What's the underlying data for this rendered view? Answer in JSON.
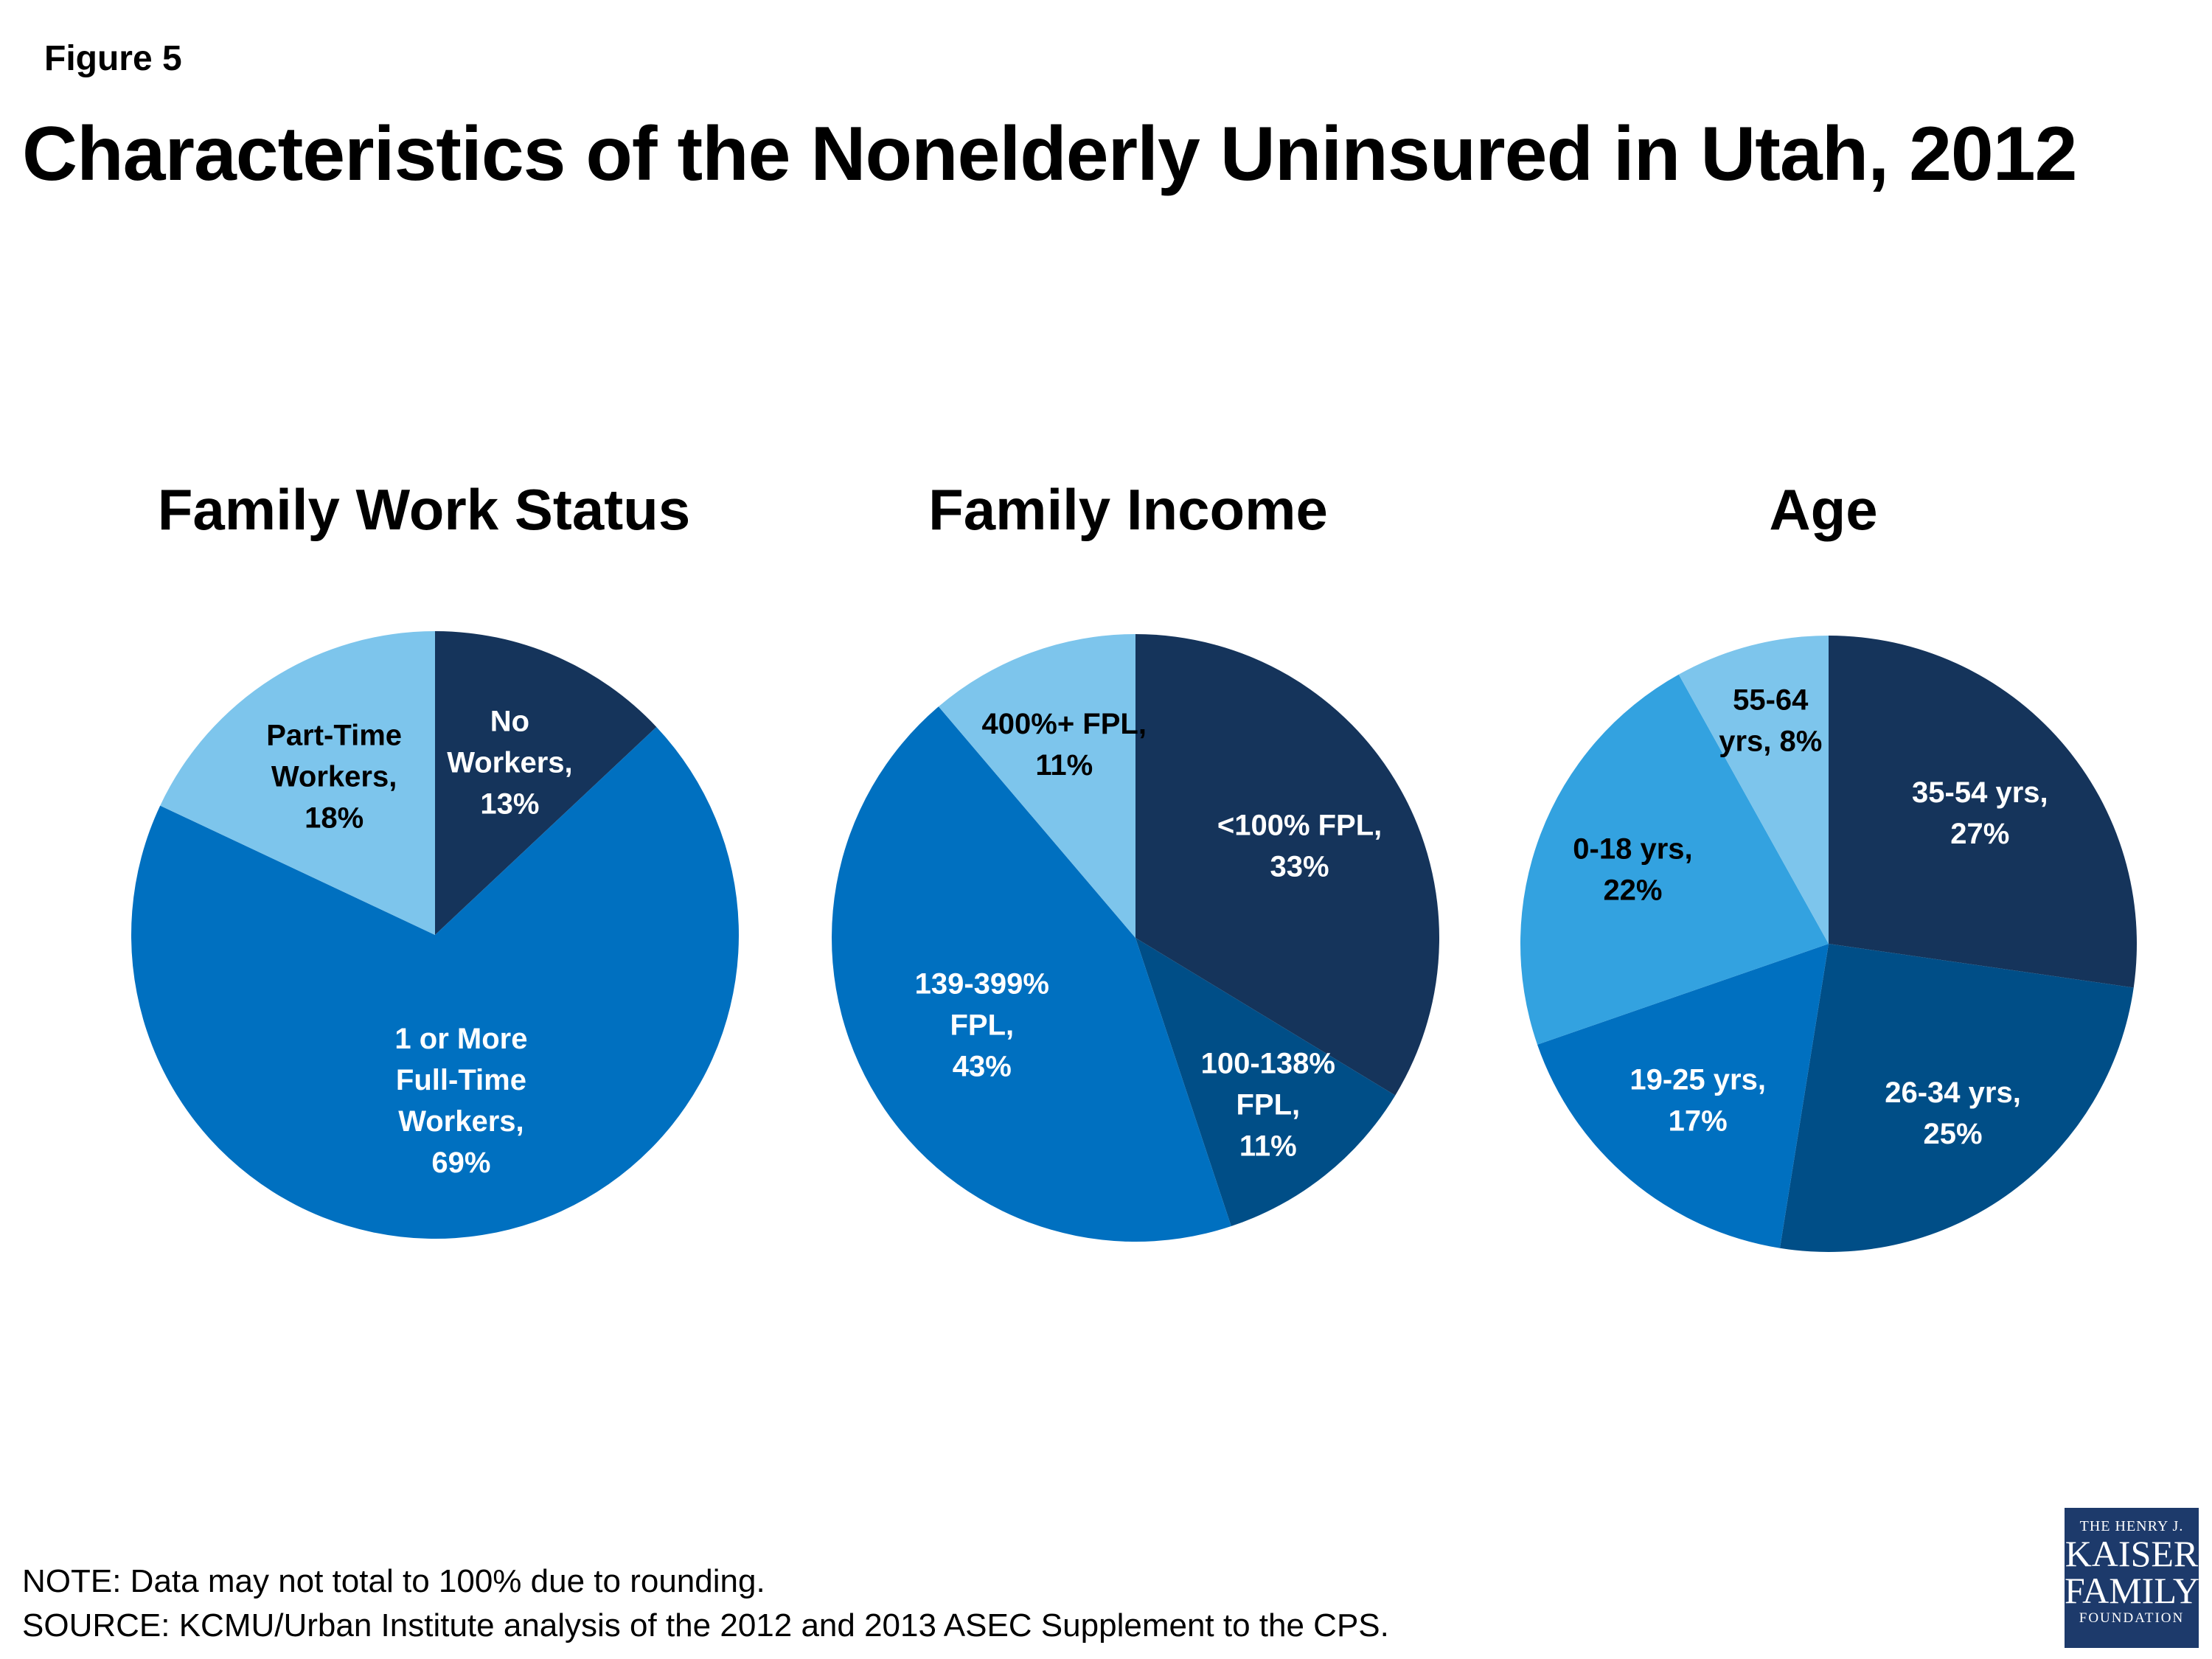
{
  "figure_label": "Figure 5",
  "title": "Characteristics of the Nonelderly Uninsured in Utah, 2012",
  "colors": {
    "darkest": "#15345b",
    "dark": "#004e87",
    "medium": "#0070c0",
    "light": "#33a2e0",
    "lightest": "#7dc5ec"
  },
  "chart_data": [
    {
      "type": "pie",
      "title": "Family Work Status",
      "slices": [
        {
          "label": "No Workers, 13%",
          "value": 13,
          "color": "#15345b",
          "label_color": "#ffffff",
          "label_lines": [
            "No",
            "Workers,",
            "13%"
          ]
        },
        {
          "label": "1 or More Full-Time Workers, 69%",
          "value": 69,
          "color": "#0070c0",
          "label_color": "#ffffff",
          "label_lines": [
            "1 or More",
            "Full-Time",
            "Workers,",
            "69%"
          ]
        },
        {
          "label": "Part-Time Workers, 18%",
          "value": 18,
          "color": "#7dc5ec",
          "label_color": "#000000",
          "label_lines": [
            "Part-Time",
            "Workers,",
            "18%"
          ]
        }
      ]
    },
    {
      "type": "pie",
      "title": "Family Income",
      "slices": [
        {
          "label": "<100% FPL, 33%",
          "value": 33,
          "color": "#15345b",
          "label_color": "#ffffff",
          "label_lines": [
            "<100% FPL,",
            "33%"
          ]
        },
        {
          "label": "100-138% FPL, 11%",
          "value": 11,
          "color": "#004e87",
          "label_color": "#ffffff",
          "label_lines": [
            "100-138%",
            "FPL,",
            "11%"
          ]
        },
        {
          "label": "139-399% FPL, 43%",
          "value": 43,
          "color": "#0070c0",
          "label_color": "#ffffff",
          "label_lines": [
            "139-399%",
            "FPL,",
            "43%"
          ]
        },
        {
          "label": "400%+ FPL, 11%",
          "value": 11,
          "color": "#7dc5ec",
          "label_color": "#000000",
          "label_lines": [
            "400%+ FPL,",
            "11%"
          ]
        }
      ]
    },
    {
      "type": "pie",
      "title": "Age",
      "slices": [
        {
          "label": "35-54 yrs, 27%",
          "value": 27,
          "color": "#15345b",
          "label_color": "#ffffff",
          "label_lines": [
            "35-54 yrs,",
            "27%"
          ]
        },
        {
          "label": "26-34 yrs, 25%",
          "value": 25,
          "color": "#004e87",
          "label_color": "#ffffff",
          "label_lines": [
            "26-34 yrs,",
            "25%"
          ]
        },
        {
          "label": "19-25 yrs, 17%",
          "value": 17,
          "color": "#0070c0",
          "label_color": "#ffffff",
          "label_lines": [
            "19-25 yrs,",
            "17%"
          ]
        },
        {
          "label": "0-18 yrs, 22%",
          "value": 22,
          "color": "#33a2e0",
          "label_color": "#000000",
          "label_lines": [
            "0-18 yrs,",
            "22%"
          ]
        },
        {
          "label": "55-64 yrs, 8%",
          "value": 8,
          "color": "#7dc5ec",
          "label_color": "#000000",
          "label_lines": [
            "55-64",
            "yrs, 8%"
          ]
        }
      ]
    }
  ],
  "note": "NOTE: Data may not total to 100% due to rounding.",
  "source": "SOURCE: KCMU/Urban Institute analysis of the 2012 and 2013 ASEC Supplement to the CPS.",
  "logo": {
    "line1": "THE HENRY J.",
    "line2": "KAISER",
    "line3": "FAMILY",
    "line4": "FOUNDATION"
  }
}
